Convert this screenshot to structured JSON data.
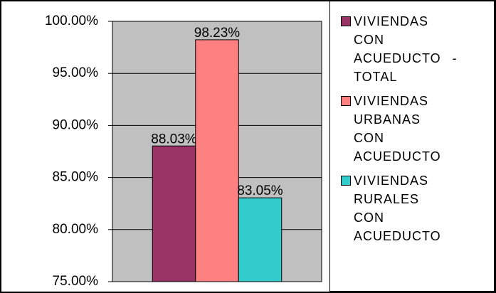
{
  "chart_data": {
    "type": "bar",
    "categories": [
      null
    ],
    "series": [
      {
        "name": "VIVIENDAS CON ACUEDUCTO - TOTAL",
        "color": "#993366",
        "values": [
          88.03
        ],
        "value_labels": [
          "88.03%"
        ]
      },
      {
        "name": "VIVIENDAS URBANAS CON ACUEDUCTO",
        "color": "#ff8080",
        "values": [
          98.23
        ],
        "value_labels": [
          "98.23%"
        ]
      },
      {
        "name": "VIVIENDAS RURALES CON ACUEDUCTO",
        "color": "#33cccc",
        "values": [
          83.05
        ],
        "value_labels": [
          "83.05%"
        ]
      }
    ],
    "ylim": [
      75,
      100
    ],
    "yticks": [
      {
        "value": 75,
        "label": "75.00%"
      },
      {
        "value": 80,
        "label": "80.00%"
      },
      {
        "value": 85,
        "label": "85.00%"
      },
      {
        "value": 90,
        "label": "90.00%"
      },
      {
        "value": 95,
        "label": "95.00%"
      },
      {
        "value": 100,
        "label": "100.00%"
      }
    ],
    "grid": true,
    "legend": "right",
    "plot_background": "#c0c0c0"
  }
}
